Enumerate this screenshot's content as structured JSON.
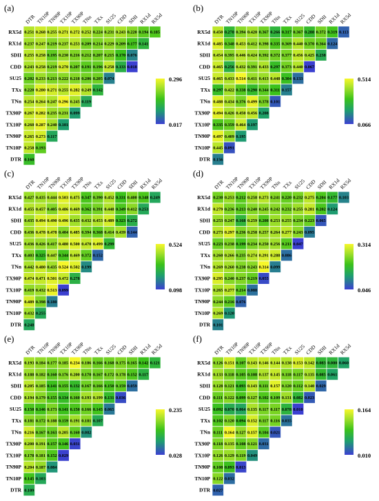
{
  "chart_data": [
    {
      "panel": "(a)",
      "type": "heatmap",
      "column_labels": [
        "DTR",
        "TN10P",
        "TN90P",
        "TX10P",
        "TX90P",
        "TNn",
        "TXx",
        "SU25",
        "CDD",
        "SDII",
        "RX1d",
        "RX5d"
      ],
      "row_labels": [
        "RX5d",
        "RX1d",
        "SDII",
        "CDD",
        "SU25",
        "TXx",
        "TNn",
        "TX90P",
        "TX10P",
        "TN90P",
        "TN10P",
        "DTR"
      ],
      "values": [
        [
          0.251,
          0.268,
          0.255,
          0.271,
          0.272,
          0.252,
          0.224,
          0.231,
          0.243,
          0.22,
          0.194,
          0.185
        ],
        [
          0.237,
          0.247,
          0.219,
          0.237,
          0.253,
          0.209,
          0.214,
          0.229,
          0.209,
          0.177,
          0.141
        ],
        [
          0.255,
          0.258,
          0.195,
          0.23,
          0.216,
          0.212,
          0.207,
          0.215,
          0.17,
          0.076
        ],
        [
          0.243,
          0.258,
          0.219,
          0.27,
          0.207,
          0.191,
          0.196,
          0.258,
          0.133,
          0.018
        ],
        [
          0.202,
          0.233,
          0.213,
          0.222,
          0.218,
          0.206,
          0.205,
          0.074
        ],
        [
          0.22,
          0.28,
          0.271,
          0.255,
          0.282,
          0.249,
          0.142
        ],
        [
          0.254,
          0.264,
          0.247,
          0.296,
          0.245,
          0.119
        ],
        [
          0.267,
          0.282,
          0.235,
          0.231,
          0.099
        ],
        [
          0.26,
          0.287,
          0.24,
          0.101
        ],
        [
          0.265,
          0.273,
          0.117
        ],
        [
          0.258,
          0.193
        ],
        [
          0.16
        ]
      ],
      "colorbar_range": [
        0.017,
        0.296
      ]
    },
    {
      "panel": "(b)",
      "type": "heatmap",
      "column_labels": [
        "DTR",
        "TN10P",
        "TN90P",
        "TX10P",
        "TX90P",
        "TNn",
        "TXx",
        "SU25",
        "CDD",
        "SDII",
        "RX1d",
        "RX5d"
      ],
      "row_labels": [
        "RX5d",
        "RX1d",
        "SDII",
        "CDD",
        "SU25",
        "TXx",
        "TNn",
        "TX90P",
        "TX10P",
        "TN90P",
        "TN10P",
        "DTR"
      ],
      "values": [
        [
          0.45,
          0.278,
          0.394,
          0.42,
          0.367,
          0.266,
          0.317,
          0.367,
          0.288,
          0.372,
          0.319,
          0.113
        ],
        [
          0.485,
          0.348,
          0.453,
          0.412,
          0.398,
          0.335,
          0.369,
          0.44,
          0.37,
          0.364,
          0.124
        ],
        [
          0.454,
          0.395,
          0.446,
          0.424,
          0.392,
          0.372,
          0.377,
          0.456,
          0.425,
          0.238
        ],
        [
          0.465,
          0.256,
          0.432,
          0.391,
          0.433,
          0.297,
          0.373,
          0.44,
          0.067
        ],
        [
          0.465,
          0.433,
          0.514,
          0.411,
          0.413,
          0.448,
          0.304,
          0.133
        ],
        [
          0.297,
          0.422,
          0.338,
          0.29,
          0.344,
          0.311,
          0.157
        ],
        [
          0.488,
          0.434,
          0.376,
          0.499,
          0.378,
          0.101
        ],
        [
          0.494,
          0.426,
          0.45,
          0.456,
          0.208
        ],
        [
          0.335,
          0.359,
          0.464,
          0.197
        ],
        [
          0.497,
          0.409,
          0.195
        ],
        [
          0.445,
          0.091
        ],
        [
          0.156
        ]
      ],
      "colorbar_range": [
        0.066,
        0.514
      ]
    },
    {
      "panel": "(c)",
      "type": "heatmap",
      "column_labels": [
        "DTR",
        "TN10P",
        "TN90P",
        "TX10P",
        "TX90P",
        "TNn",
        "TXx",
        "SU25",
        "CDD",
        "SDII",
        "RX1d",
        "RX5d"
      ],
      "row_labels": [
        "RX5d",
        "RX1d",
        "SDII",
        "CDD",
        "SU25",
        "TXx",
        "TNn",
        "TX90P",
        "TX10P",
        "TN90P",
        "TN10P",
        "DTR"
      ],
      "values": [
        [
          0.427,
          0.435,
          0.444,
          0.503,
          0.475,
          0.347,
          0.39,
          0.452,
          0.331,
          0.4,
          0.348,
          0.249
        ],
        [
          0.455,
          0.457,
          0.405,
          0.486,
          0.469,
          0.362,
          0.391,
          0.448,
          0.349,
          0.412,
          0.253
        ],
        [
          0.435,
          0.494,
          0.49,
          0.496,
          0.435,
          0.432,
          0.453,
          0.489,
          0.323,
          0.272
        ],
        [
          0.436,
          0.478,
          0.478,
          0.404,
          0.485,
          0.394,
          0.368,
          0.414,
          0.439,
          0.144
        ],
        [
          0.436,
          0.426,
          0.417,
          0.48,
          0.5,
          0.47,
          0.499,
          0.299
        ],
        [
          0.403,
          0.325,
          0.447,
          0.344,
          0.469,
          0.372,
          0.152
        ],
        [
          0.442,
          0.48,
          0.435,
          0.524,
          0.502,
          0.199
        ],
        [
          0.474,
          0.471,
          0.501,
          0.472,
          0.278
        ],
        [
          0.419,
          0.432,
          0.513,
          0.099
        ],
        [
          0.489,
          0.398,
          0.18
        ],
        [
          0.432,
          0.255
        ],
        [
          0.248
        ]
      ],
      "colorbar_range": [
        0.098,
        0.524
      ]
    },
    {
      "panel": "(d)",
      "type": "heatmap",
      "column_labels": [
        "DTR",
        "TN10P",
        "TN90P",
        "TX10P",
        "TX90P",
        "TNn",
        "TXx",
        "SU25",
        "CDD",
        "SDII",
        "RX1d",
        "RX5d"
      ],
      "row_labels": [
        "RX5d",
        "RX1d",
        "SDII",
        "CDD",
        "SU25",
        "TXx",
        "TNn",
        "TX90P",
        "TX10P",
        "TN90P",
        "TN10P",
        "DTR"
      ],
      "values": [
        [
          0.23,
          0.253,
          0.212,
          0.258,
          0.273,
          0.241,
          0.22,
          0.232,
          0.275,
          0.204,
          0.177,
          0.103
        ],
        [
          0.279,
          0.236,
          0.213,
          0.24,
          0.245,
          0.242,
          0.232,
          0.255,
          0.281,
          0.202,
          0.124
        ],
        [
          0.253,
          0.247,
          0.168,
          0.259,
          0.208,
          0.253,
          0.255,
          0.234,
          0.223,
          0.065
        ],
        [
          0.273,
          0.297,
          0.236,
          0.258,
          0.257,
          0.264,
          0.277,
          0.243,
          0.095
        ],
        [
          0.223,
          0.238,
          0.199,
          0.234,
          0.25,
          0.256,
          0.211,
          0.047
        ],
        [
          0.26,
          0.266,
          0.235,
          0.274,
          0.291,
          0.288,
          0.086
        ],
        [
          0.269,
          0.26,
          0.238,
          0.243,
          0.314,
          0.099
        ],
        [
          0.295,
          0.24,
          0.237,
          0.219,
          0.055
        ],
        [
          0.265,
          0.277,
          0.214,
          0.088
        ],
        [
          0.244,
          0.216,
          0.076
        ],
        [
          0.269,
          0.12
        ],
        [
          0.101
        ]
      ],
      "colorbar_range": [
        0.046,
        0.314
      ]
    },
    {
      "panel": "(e)",
      "type": "heatmap",
      "column_labels": [
        "DTR",
        "TN10P",
        "TN90P",
        "TX10P",
        "TX90P",
        "TNn",
        "TXx",
        "SU25",
        "CDD",
        "SDII",
        "RX1d",
        "RX5d"
      ],
      "row_labels": [
        "RX5d",
        "RX1d",
        "SDII",
        "CDD",
        "SU25",
        "TXx",
        "TNn",
        "TX90P",
        "TX10P",
        "TN90P",
        "TN10P",
        "DTR"
      ],
      "values": [
        [
          0.193,
          0.184,
          0.177,
          0.185,
          0.234,
          0.186,
          0.166,
          0.168,
          0.175,
          0.165,
          0.142,
          0.121
        ],
        [
          0.188,
          0.182,
          0.16,
          0.176,
          0.2,
          0.17,
          0.167,
          0.172,
          0.178,
          0.152,
          0.117
        ],
        [
          0.205,
          0.185,
          0.141,
          0.155,
          0.132,
          0.167,
          0.166,
          0.15,
          0.159,
          0.059
        ],
        [
          0.194,
          0.179,
          0.155,
          0.134,
          0.16,
          0.193,
          0.199,
          0.131,
          0.036
        ],
        [
          0.15,
          0.146,
          0.173,
          0.141,
          0.15,
          0.166,
          0.145,
          0.065
        ],
        [
          0.181,
          0.172,
          0.188,
          0.159,
          0.191,
          0.181,
          0.107
        ],
        [
          0.216,
          0.167,
          0.163,
          0.205,
          0.16,
          0.082
        ],
        [
          0.2,
          0.191,
          0.157,
          0.146,
          0.031
        ],
        [
          0.178,
          0.181,
          0.152,
          0.029
        ],
        [
          0.204,
          0.187,
          0.084
        ],
        [
          0.145,
          0.103
        ],
        [
          0.109
        ]
      ],
      "colorbar_range": [
        0.028,
        0.235
      ]
    },
    {
      "panel": "(f)",
      "type": "heatmap",
      "column_labels": [
        "DTR",
        "TN10P",
        "TN90P",
        "TX10P",
        "TX90P",
        "TNn",
        "TXx",
        "SU25",
        "CDD",
        "SDII",
        "RX1d",
        "RX5d"
      ],
      "row_labels": [
        "RX5d",
        "RX1d",
        "SDII",
        "CDD",
        "SU25",
        "TXx",
        "TNn",
        "TX90P",
        "TX10P",
        "TN90P",
        "TN10P",
        "DTR"
      ],
      "values": [
        [
          0.126,
          0.151,
          0.107,
          0.143,
          0.146,
          0.144,
          0.138,
          0.153,
          0.142,
          0.083,
          0.08,
          0.06
        ],
        [
          0.133,
          0.118,
          0.105,
          0.108,
          0.137,
          0.145,
          0.118,
          0.117,
          0.135,
          0.085,
          0.061
        ],
        [
          0.128,
          0.121,
          0.093,
          0.143,
          0.111,
          0.157,
          0.12,
          0.112,
          0.14,
          0.029
        ],
        [
          0.111,
          0.122,
          0.099,
          0.127,
          0.102,
          0.109,
          0.131,
          0.082,
          0.023
        ],
        [
          0.092,
          0.07,
          0.064,
          0.135,
          0.117,
          0.117,
          0.078,
          0.01
        ],
        [
          0.102,
          0.12,
          0.094,
          0.152,
          0.117,
          0.116,
          0.035
        ],
        [
          0.111,
          0.164,
          0.127,
          0.157,
          0.104,
          0.021
        ],
        [
          0.118,
          0.135,
          0.108,
          0.121,
          0.031
        ],
        [
          0.126,
          0.129,
          0.119,
          0.049
        ],
        [
          0.108,
          0.093,
          0.013
        ],
        [
          0.122,
          0.032
        ],
        [
          0.027
        ]
      ],
      "colorbar_range": [
        0.01,
        0.164
      ]
    }
  ],
  "colors": {
    "low": "#3b3fd1",
    "mid_low": "#1e9f6e",
    "mid": "#3bc21a",
    "mid_high": "#a6e12a",
    "high": "#f6f72a",
    "cell_border": "#ffffff"
  }
}
